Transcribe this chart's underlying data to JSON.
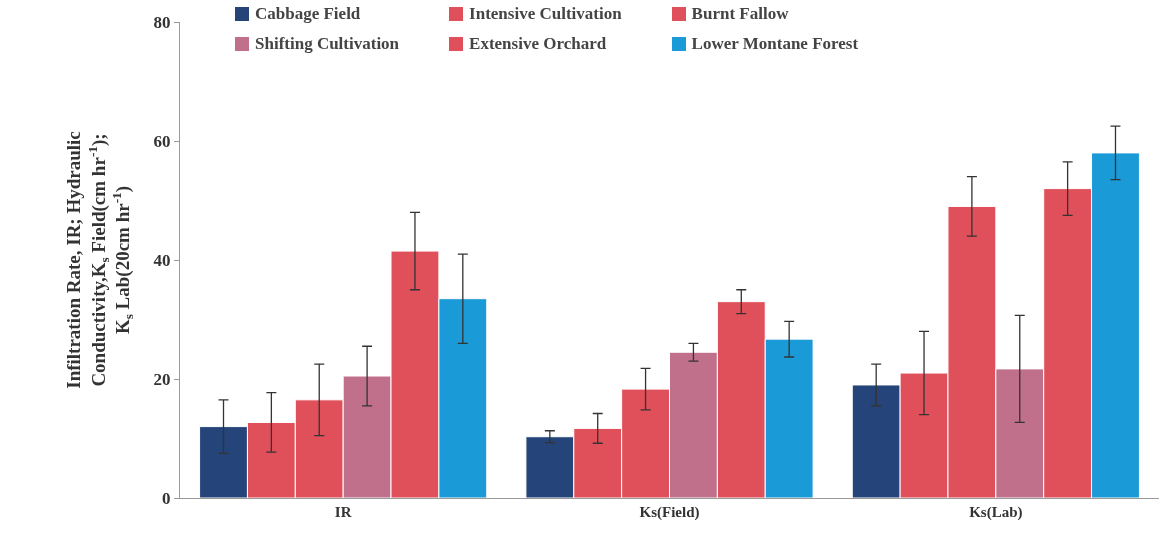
{
  "chart_data": {
    "type": "bar",
    "ylabel": "Infiltration Rate, IR; Hydraulic\nConductivity,K$_{s}$ Field(cm hr$^{-1}$);\nK$_{s}$ Lab(20cm hr$^{-1}$)",
    "categories": [
      "IR",
      "Ks(Field)",
      "Ks(Lab)"
    ],
    "series": [
      {
        "name": "Cabbage Field",
        "color": "#24447a",
        "values": [
          12,
          10.3,
          19
        ],
        "errors": [
          4.5,
          1,
          3.5
        ]
      },
      {
        "name": "Intensive Cultivation",
        "color": "#e0505a",
        "values": [
          12.7,
          11.7,
          21
        ],
        "errors": [
          5,
          2.5,
          7
        ]
      },
      {
        "name": "Burnt Fallow",
        "color": "#e0505a",
        "values": [
          16.5,
          18.3,
          49
        ],
        "errors": [
          6,
          3.5,
          5
        ]
      },
      {
        "name": "Shifting Cultivation",
        "color": "#c0708a",
        "values": [
          20.5,
          24.5,
          21.7
        ],
        "errors": [
          5,
          1.5,
          9
        ]
      },
      {
        "name": "Extensive Orchard",
        "color": "#e0505a",
        "values": [
          41.5,
          33,
          52
        ],
        "errors": [
          6.5,
          2,
          4.5
        ]
      },
      {
        "name": "Lower Montane Forest",
        "color": "#1a9ad6",
        "values": [
          33.5,
          26.7,
          58
        ],
        "errors": [
          7.5,
          3,
          4.5
        ]
      }
    ],
    "ylim": [
      0,
      80
    ],
    "yticks": [
      0,
      20,
      40,
      60,
      80
    ],
    "grid": false,
    "legend": "top"
  }
}
